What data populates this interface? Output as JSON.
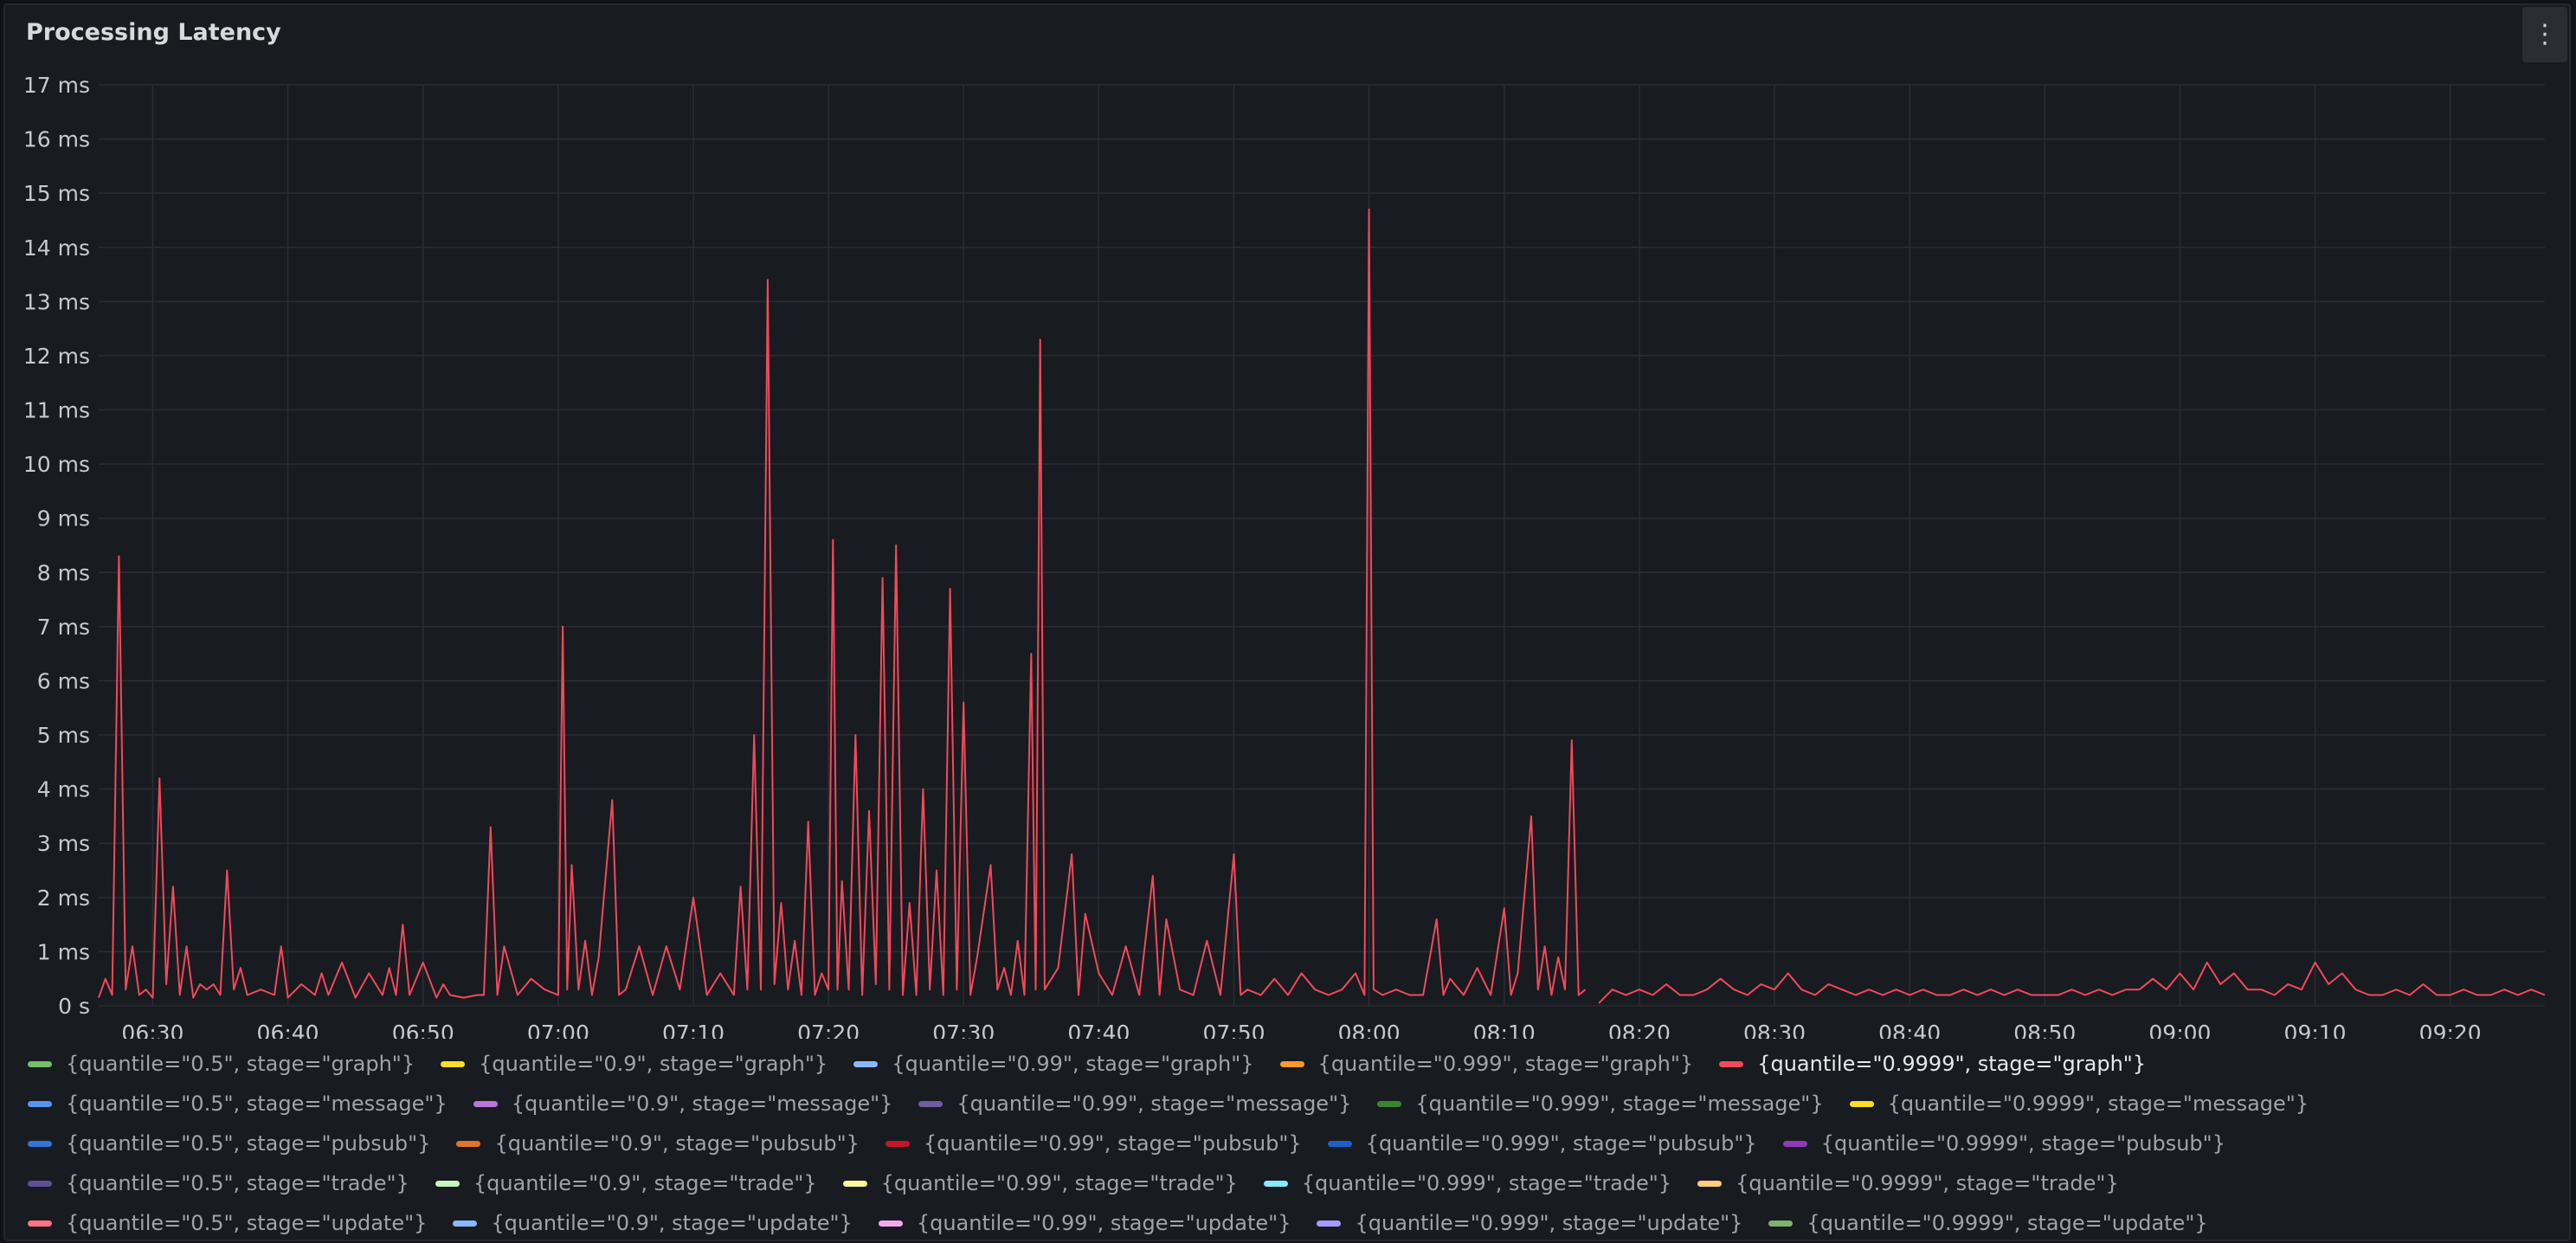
{
  "panel": {
    "title": "Processing Latency",
    "menu_icon": "kebab-menu-icon"
  },
  "chart_data": {
    "type": "line",
    "title": "Processing Latency",
    "ylim": [
      0,
      17
    ],
    "y_ticks": [
      "0 s",
      "1 ms",
      "2 ms",
      "3 ms",
      "4 ms",
      "5 ms",
      "6 ms",
      "7 ms",
      "8 ms",
      "9 ms",
      "10 ms",
      "11 ms",
      "12 ms",
      "13 ms",
      "14 ms",
      "15 ms",
      "16 ms",
      "17 ms"
    ],
    "x_range": [
      "06:26",
      "09:27"
    ],
    "x_ticks": [
      "06:30",
      "06:40",
      "06:50",
      "07:00",
      "07:10",
      "07:20",
      "07:30",
      "07:40",
      "07:50",
      "08:00",
      "08:10",
      "08:20",
      "08:30",
      "08:40",
      "08:50",
      "09:00",
      "09:10",
      "09:20"
    ],
    "grid": true,
    "legend_placement": "bottom",
    "colors": {
      "line": "#f2495c",
      "grid": "#2a2d33",
      "text": "#c7c8d0"
    },
    "series": [
      {
        "name": "{quantile=\"0.9999\", stage=\"graph\"}",
        "color": "#f2495c",
        "points": [
          [
            "06:26",
            0.15
          ],
          [
            "06:26:30",
            0.5
          ],
          [
            "06:27",
            0.2
          ],
          [
            "06:27:30",
            8.3
          ],
          [
            "06:28",
            0.3
          ],
          [
            "06:28:30",
            1.1
          ],
          [
            "06:29",
            0.2
          ],
          [
            "06:29:30",
            0.3
          ],
          [
            "06:30",
            0.15
          ],
          [
            "06:30:30",
            4.2
          ],
          [
            "06:31",
            0.4
          ],
          [
            "06:31:30",
            2.2
          ],
          [
            "06:32",
            0.2
          ],
          [
            "06:32:30",
            1.1
          ],
          [
            "06:33",
            0.15
          ],
          [
            "06:33:30",
            0.4
          ],
          [
            "06:34",
            0.3
          ],
          [
            "06:34:30",
            0.4
          ],
          [
            "06:35",
            0.2
          ],
          [
            "06:35:30",
            2.5
          ],
          [
            "06:36",
            0.3
          ],
          [
            "06:36:30",
            0.7
          ],
          [
            "06:37",
            0.2
          ],
          [
            "06:38",
            0.3
          ],
          [
            "06:39",
            0.2
          ],
          [
            "06:39:30",
            1.1
          ],
          [
            "06:40",
            0.15
          ],
          [
            "06:41",
            0.4
          ],
          [
            "06:42",
            0.2
          ],
          [
            "06:42:30",
            0.6
          ],
          [
            "06:43",
            0.2
          ],
          [
            "06:44",
            0.8
          ],
          [
            "06:45",
            0.15
          ],
          [
            "06:46",
            0.6
          ],
          [
            "06:47",
            0.2
          ],
          [
            "06:47:30",
            0.7
          ],
          [
            "06:48",
            0.2
          ],
          [
            "06:48:30",
            1.5
          ],
          [
            "06:49",
            0.2
          ],
          [
            "06:50",
            0.8
          ],
          [
            "06:51",
            0.15
          ],
          [
            "06:51:30",
            0.4
          ],
          [
            "06:52",
            0.2
          ],
          [
            "06:53",
            0.15
          ],
          [
            "06:54",
            0.2
          ],
          [
            "06:54:30",
            0.2
          ],
          [
            "06:55",
            3.3
          ],
          [
            "06:55:30",
            0.2
          ],
          [
            "06:56",
            1.1
          ],
          [
            "06:57",
            0.2
          ],
          [
            "06:58",
            0.5
          ],
          [
            "06:59",
            0.3
          ],
          [
            "07:00",
            0.2
          ],
          [
            "07:00:20",
            7.0
          ],
          [
            "07:00:40",
            0.3
          ],
          [
            "07:01",
            2.6
          ],
          [
            "07:01:30",
            0.3
          ],
          [
            "07:02",
            1.2
          ],
          [
            "07:02:30",
            0.2
          ],
          [
            "07:03",
            0.9
          ],
          [
            "07:04",
            3.8
          ],
          [
            "07:04:30",
            0.2
          ],
          [
            "07:05",
            0.3
          ],
          [
            "07:06",
            1.1
          ],
          [
            "07:07",
            0.2
          ],
          [
            "07:08",
            1.1
          ],
          [
            "07:09",
            0.3
          ],
          [
            "07:10",
            2.0
          ],
          [
            "07:11",
            0.2
          ],
          [
            "07:12",
            0.6
          ],
          [
            "07:13",
            0.2
          ],
          [
            "07:13:30",
            2.2
          ],
          [
            "07:14",
            0.3
          ],
          [
            "07:14:30",
            5.0
          ],
          [
            "07:15",
            0.3
          ],
          [
            "07:15:30",
            13.4
          ],
          [
            "07:16",
            0.4
          ],
          [
            "07:16:30",
            1.9
          ],
          [
            "07:17",
            0.3
          ],
          [
            "07:17:30",
            1.2
          ],
          [
            "07:18",
            0.2
          ],
          [
            "07:18:30",
            3.4
          ],
          [
            "07:19",
            0.2
          ],
          [
            "07:19:30",
            0.6
          ],
          [
            "07:20",
            0.3
          ],
          [
            "07:20:20",
            8.6
          ],
          [
            "07:20:40",
            0.3
          ],
          [
            "07:21",
            2.3
          ],
          [
            "07:21:30",
            0.3
          ],
          [
            "07:22",
            5.0
          ],
          [
            "07:22:30",
            0.2
          ],
          [
            "07:23",
            3.6
          ],
          [
            "07:23:30",
            0.4
          ],
          [
            "07:24",
            7.9
          ],
          [
            "07:24:30",
            0.3
          ],
          [
            "07:25",
            8.5
          ],
          [
            "07:25:30",
            0.2
          ],
          [
            "07:26",
            1.9
          ],
          [
            "07:26:30",
            0.2
          ],
          [
            "07:27",
            4.0
          ],
          [
            "07:27:30",
            0.3
          ],
          [
            "07:28",
            2.5
          ],
          [
            "07:28:30",
            0.2
          ],
          [
            "07:29",
            7.7
          ],
          [
            "07:29:30",
            0.3
          ],
          [
            "07:30",
            5.6
          ],
          [
            "07:30:30",
            0.2
          ],
          [
            "07:31",
            0.9
          ],
          [
            "07:32",
            2.6
          ],
          [
            "07:32:30",
            0.3
          ],
          [
            "07:33",
            0.7
          ],
          [
            "07:33:30",
            0.2
          ],
          [
            "07:34",
            1.2
          ],
          [
            "07:34:30",
            0.2
          ],
          [
            "07:35",
            6.5
          ],
          [
            "07:35:20",
            0.3
          ],
          [
            "07:35:40",
            12.3
          ],
          [
            "07:36",
            0.3
          ],
          [
            "07:37",
            0.7
          ],
          [
            "07:38",
            2.8
          ],
          [
            "07:38:30",
            0.2
          ],
          [
            "07:39",
            1.7
          ],
          [
            "07:40",
            0.6
          ],
          [
            "07:41",
            0.2
          ],
          [
            "07:42",
            1.1
          ],
          [
            "07:43",
            0.2
          ],
          [
            "07:44",
            2.4
          ],
          [
            "07:44:30",
            0.2
          ],
          [
            "07:45",
            1.6
          ],
          [
            "07:46",
            0.3
          ],
          [
            "07:47",
            0.2
          ],
          [
            "07:48",
            1.2
          ],
          [
            "07:49",
            0.2
          ],
          [
            "07:50",
            2.8
          ],
          [
            "07:50:30",
            0.2
          ],
          [
            "07:51",
            0.3
          ],
          [
            "07:52",
            0.2
          ],
          [
            "07:53",
            0.5
          ],
          [
            "07:54",
            0.2
          ],
          [
            "07:55",
            0.6
          ],
          [
            "07:56",
            0.3
          ],
          [
            "07:57",
            0.2
          ],
          [
            "07:58",
            0.3
          ],
          [
            "07:59",
            0.6
          ],
          [
            "07:59:40",
            0.2
          ],
          [
            "08:00",
            14.7
          ],
          [
            "08:00:20",
            0.3
          ],
          [
            "08:01",
            0.2
          ],
          [
            "08:02",
            0.3
          ],
          [
            "08:03",
            0.2
          ],
          [
            "08:04",
            0.2
          ],
          [
            "08:05",
            1.6
          ],
          [
            "08:05:30",
            0.2
          ],
          [
            "08:06",
            0.5
          ],
          [
            "08:07",
            0.2
          ],
          [
            "08:08",
            0.7
          ],
          [
            "08:09",
            0.2
          ],
          [
            "08:10",
            1.8
          ],
          [
            "08:10:30",
            0.2
          ],
          [
            "08:11",
            0.6
          ],
          [
            "08:12",
            3.5
          ],
          [
            "08:12:30",
            0.3
          ],
          [
            "08:13",
            1.1
          ],
          [
            "08:13:30",
            0.2
          ],
          [
            "08:14",
            0.9
          ],
          [
            "08:14:30",
            0.3
          ],
          [
            "08:15",
            4.9
          ],
          [
            "08:15:30",
            0.2
          ],
          [
            "08:16",
            0.3
          ],
          null,
          [
            "08:17",
            0.05
          ],
          [
            "08:18",
            0.3
          ],
          [
            "08:19",
            0.2
          ],
          [
            "08:20",
            0.3
          ],
          [
            "08:21",
            0.2
          ],
          [
            "08:22",
            0.4
          ],
          [
            "08:23",
            0.2
          ],
          [
            "08:24",
            0.2
          ],
          [
            "08:25",
            0.3
          ],
          [
            "08:26",
            0.5
          ],
          [
            "08:27",
            0.3
          ],
          [
            "08:28",
            0.2
          ],
          [
            "08:29",
            0.4
          ],
          [
            "08:30",
            0.3
          ],
          [
            "08:31",
            0.6
          ],
          [
            "08:32",
            0.3
          ],
          [
            "08:33",
            0.2
          ],
          [
            "08:34",
            0.4
          ],
          [
            "08:35",
            0.3
          ],
          [
            "08:36",
            0.2
          ],
          [
            "08:37",
            0.3
          ],
          [
            "08:38",
            0.2
          ],
          [
            "08:39",
            0.3
          ],
          [
            "08:40",
            0.2
          ],
          [
            "08:41",
            0.3
          ],
          [
            "08:42",
            0.2
          ],
          [
            "08:43",
            0.2
          ],
          [
            "08:44",
            0.3
          ],
          [
            "08:45",
            0.2
          ],
          [
            "08:46",
            0.3
          ],
          [
            "08:47",
            0.2
          ],
          [
            "08:48",
            0.3
          ],
          [
            "08:49",
            0.2
          ],
          [
            "08:50",
            0.2
          ],
          [
            "08:51",
            0.2
          ],
          [
            "08:52",
            0.3
          ],
          [
            "08:53",
            0.2
          ],
          [
            "08:54",
            0.3
          ],
          [
            "08:55",
            0.2
          ],
          [
            "08:56",
            0.3
          ],
          [
            "08:57",
            0.3
          ],
          [
            "08:58",
            0.5
          ],
          [
            "08:59",
            0.3
          ],
          [
            "09:00",
            0.6
          ],
          [
            "09:01",
            0.3
          ],
          [
            "09:02",
            0.8
          ],
          [
            "09:03",
            0.4
          ],
          [
            "09:04",
            0.6
          ],
          [
            "09:05",
            0.3
          ],
          [
            "09:06",
            0.3
          ],
          [
            "09:07",
            0.2
          ],
          [
            "09:08",
            0.4
          ],
          [
            "09:09",
            0.3
          ],
          [
            "09:10",
            0.8
          ],
          [
            "09:11",
            0.4
          ],
          [
            "09:12",
            0.6
          ],
          [
            "09:13",
            0.3
          ],
          [
            "09:14",
            0.2
          ],
          [
            "09:15",
            0.2
          ],
          [
            "09:16",
            0.3
          ],
          [
            "09:17",
            0.2
          ],
          [
            "09:18",
            0.4
          ],
          [
            "09:19",
            0.2
          ],
          [
            "09:20",
            0.2
          ],
          [
            "09:21",
            0.3
          ],
          [
            "09:22",
            0.2
          ],
          [
            "09:23",
            0.2
          ],
          [
            "09:24",
            0.3
          ],
          [
            "09:25",
            0.2
          ],
          [
            "09:26",
            0.3
          ],
          [
            "09:27",
            0.2
          ]
        ]
      }
    ],
    "legend": [
      {
        "label": "{quantile=\"0.5\", stage=\"graph\"}",
        "color": "#73bf69"
      },
      {
        "label": "{quantile=\"0.9\", stage=\"graph\"}",
        "color": "#fade2a"
      },
      {
        "label": "{quantile=\"0.99\", stage=\"graph\"}",
        "color": "#8ab8ff"
      },
      {
        "label": "{quantile=\"0.999\", stage=\"graph\"}",
        "color": "#ff9830"
      },
      {
        "label": "{quantile=\"0.9999\", stage=\"graph\"}",
        "color": "#f2495c",
        "active": true
      },
      {
        "label": "{quantile=\"0.5\", stage=\"message\"}",
        "color": "#5794f2"
      },
      {
        "label": "{quantile=\"0.9\", stage=\"message\"}",
        "color": "#b877d9"
      },
      {
        "label": "{quantile=\"0.99\", stage=\"message\"}",
        "color": "#705da0"
      },
      {
        "label": "{quantile=\"0.999\", stage=\"message\"}",
        "color": "#37872d"
      },
      {
        "label": "{quantile=\"0.9999\", stage=\"message\"}",
        "color": "#fade2a"
      },
      {
        "label": "{quantile=\"0.5\", stage=\"pubsub\"}",
        "color": "#3274d9"
      },
      {
        "label": "{quantile=\"0.9\", stage=\"pubsub\"}",
        "color": "#e0752d"
      },
      {
        "label": "{quantile=\"0.99\", stage=\"pubsub\"}",
        "color": "#c4162a"
      },
      {
        "label": "{quantile=\"0.999\", stage=\"pubsub\"}",
        "color": "#1f60c4"
      },
      {
        "label": "{quantile=\"0.9999\", stage=\"pubsub\"}",
        "color": "#8f3bb8"
      },
      {
        "label": "{quantile=\"0.5\", stage=\"trade\"}",
        "color": "#5f4f99"
      },
      {
        "label": "{quantile=\"0.9\", stage=\"trade\"}",
        "color": "#c8f2c2"
      },
      {
        "label": "{quantile=\"0.99\", stage=\"trade\"}",
        "color": "#fff899"
      },
      {
        "label": "{quantile=\"0.999\", stage=\"trade\"}",
        "color": "#8ae8ff"
      },
      {
        "label": "{quantile=\"0.9999\", stage=\"trade\"}",
        "color": "#ffcb7d"
      },
      {
        "label": "{quantile=\"0.5\", stage=\"update\"}",
        "color": "#ff7383"
      },
      {
        "label": "{quantile=\"0.9\", stage=\"update\"}",
        "color": "#8ab8ff"
      },
      {
        "label": "{quantile=\"0.99\", stage=\"update\"}",
        "color": "#f5a8f0"
      },
      {
        "label": "{quantile=\"0.999\", stage=\"update\"}",
        "color": "#a59bff"
      },
      {
        "label": "{quantile=\"0.9999\", stage=\"update\"}",
        "color": "#7eb26d"
      }
    ]
  }
}
